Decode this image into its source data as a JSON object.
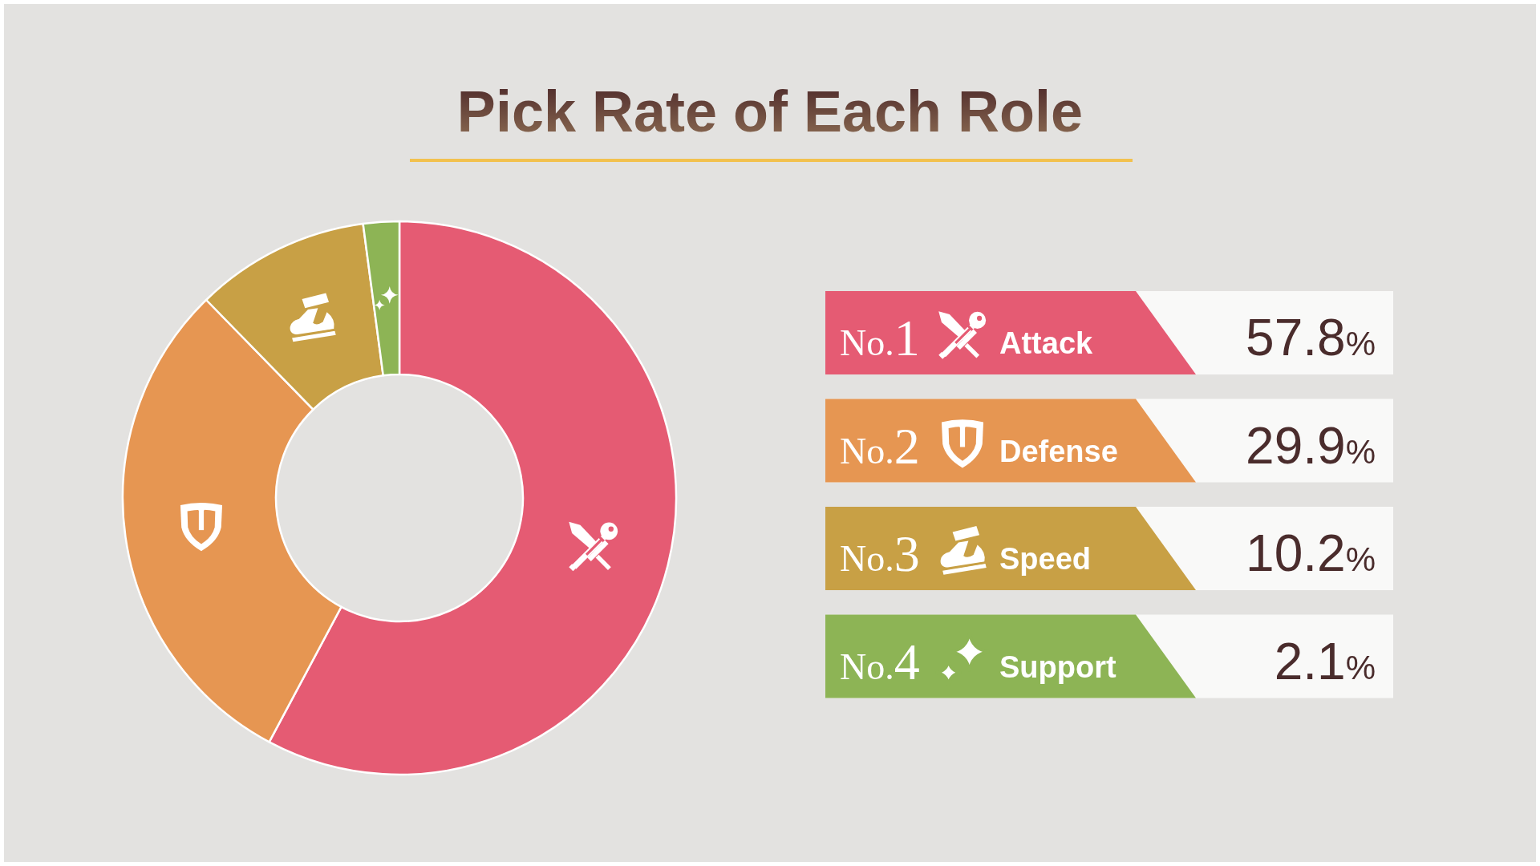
{
  "chart_data": {
    "type": "donut",
    "title": "Pick Rate of Each Role",
    "categories": [
      "Attack",
      "Defense",
      "Speed",
      "Support"
    ],
    "values": [
      57.8,
      29.9,
      10.2,
      2.1
    ],
    "colors": [
      "#e55b73",
      "#e69652",
      "#c8a045",
      "#8db455"
    ],
    "value_labels": [
      "57.8%",
      "29.9%",
      "10.2%",
      "2.1%"
    ],
    "annotations": [
      "No.1",
      "No.2",
      "No.3",
      "No.4"
    ],
    "legend": "right"
  }
}
